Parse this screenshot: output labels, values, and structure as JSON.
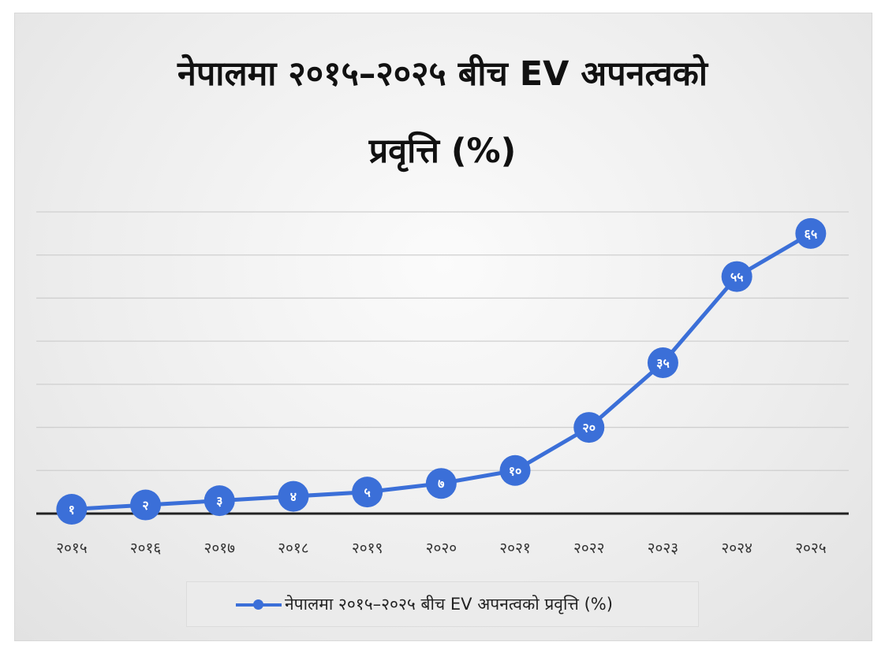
{
  "chart_data": {
    "type": "line",
    "title_line1": "नेपालमा २०१५–२०२५ बीच EV अपनत्वको",
    "title_line2": "प्रवृत्ति (%)",
    "categories": [
      "२०१५",
      "२०१६",
      "२०१७",
      "२०१८",
      "२०१९",
      "२०२०",
      "२०२१",
      "२०२२",
      "२०२३",
      "२०२४",
      "२०२५"
    ],
    "series": [
      {
        "name": "नेपालमा २०१५–२०२५ बीच EV अपनत्वको प्रवृत्ति (%)",
        "values": [
          1,
          2,
          3,
          4,
          5,
          7,
          10,
          20,
          35,
          55,
          65
        ],
        "data_labels": [
          "१",
          "२",
          "३",
          "४",
          "५",
          "७",
          "१०",
          "२०",
          "३५",
          "५५",
          "६५"
        ]
      }
    ],
    "ylim": [
      0,
      70
    ],
    "grid": true,
    "legend_position": "bottom",
    "colors": {
      "line": "#3b6fd8",
      "marker": "#3b6fd8",
      "marker_text": "#ffffff",
      "grid": "#cfcfcf",
      "baseline": "#222222"
    }
  }
}
